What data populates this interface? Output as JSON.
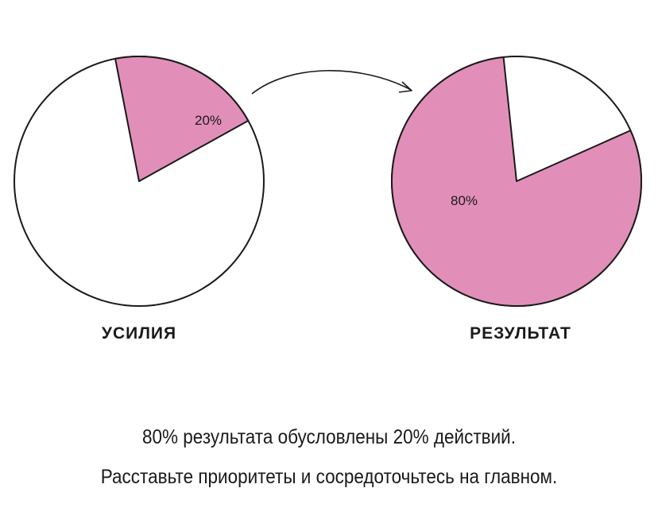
{
  "chart_data": [
    {
      "type": "pie",
      "title": "УСИЛИЯ",
      "slices": [
        {
          "label": "20%",
          "value": 20,
          "color": "#e18fb9"
        },
        {
          "label": "",
          "value": 80,
          "color": "#ffffff"
        }
      ]
    },
    {
      "type": "pie",
      "title": "РЕЗУЛЬТАТ",
      "slices": [
        {
          "label": "80%",
          "value": 80,
          "color": "#e18fb9"
        },
        {
          "label": "",
          "value": 20,
          "color": "#ffffff"
        }
      ]
    }
  ],
  "caption": {
    "line1": "80% результата обусловлены 20% действий.",
    "line2": "Расставьте приоритеты и сосредоточьтесь на главном."
  },
  "colors": {
    "accent": "#e18fb9",
    "stroke": "#1a1a1a"
  },
  "icons": {
    "arrow": "curved-arrow-icon"
  }
}
